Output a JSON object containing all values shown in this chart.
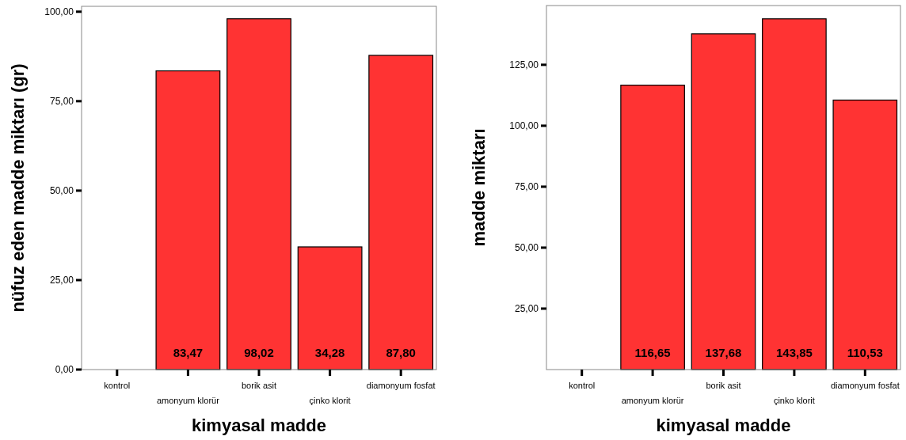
{
  "chart_data": [
    {
      "type": "bar",
      "xlabel": "kimyasal madde",
      "ylabel": "nüfuz eden madde miktarı (gr)",
      "categories": [
        "kontrol",
        "amonyum klorür",
        "borik asit",
        "çinko klorit",
        "diamonyum fosfat"
      ],
      "values": [
        null,
        83.47,
        98.02,
        34.28,
        87.8
      ],
      "value_labels": [
        null,
        "83,47",
        "98,02",
        "34,28",
        "87,80"
      ],
      "color": "#ff3333",
      "ylim": [
        0,
        101.5
      ],
      "yticks": [
        {
          "value": 0,
          "label": "0,00"
        },
        {
          "value": 25,
          "label": "25,00"
        },
        {
          "value": 50,
          "label": "50,00"
        },
        {
          "value": 75,
          "label": "75,00"
        },
        {
          "value": 100,
          "label": "100,00"
        }
      ],
      "grid": false
    },
    {
      "type": "bar",
      "xlabel": "kimyasal madde",
      "ylabel": "madde miktarı",
      "categories": [
        "kontrol",
        "amonyum klorür",
        "borik asit",
        "çinko klorit",
        "diamonyum fosfat"
      ],
      "values": [
        null,
        116.65,
        137.68,
        143.85,
        110.53
      ],
      "value_labels": [
        null,
        "116,65",
        "137,68",
        "143,85",
        "110,53"
      ],
      "color": "#ff3333",
      "ylim": [
        0,
        149.3
      ],
      "yticks": [
        {
          "value": 25,
          "label": "25,00"
        },
        {
          "value": 50,
          "label": "50,00"
        },
        {
          "value": 75,
          "label": "75,00"
        },
        {
          "value": 100,
          "label": "100,00"
        },
        {
          "value": 125,
          "label": "125,00"
        }
      ],
      "grid": false
    }
  ]
}
